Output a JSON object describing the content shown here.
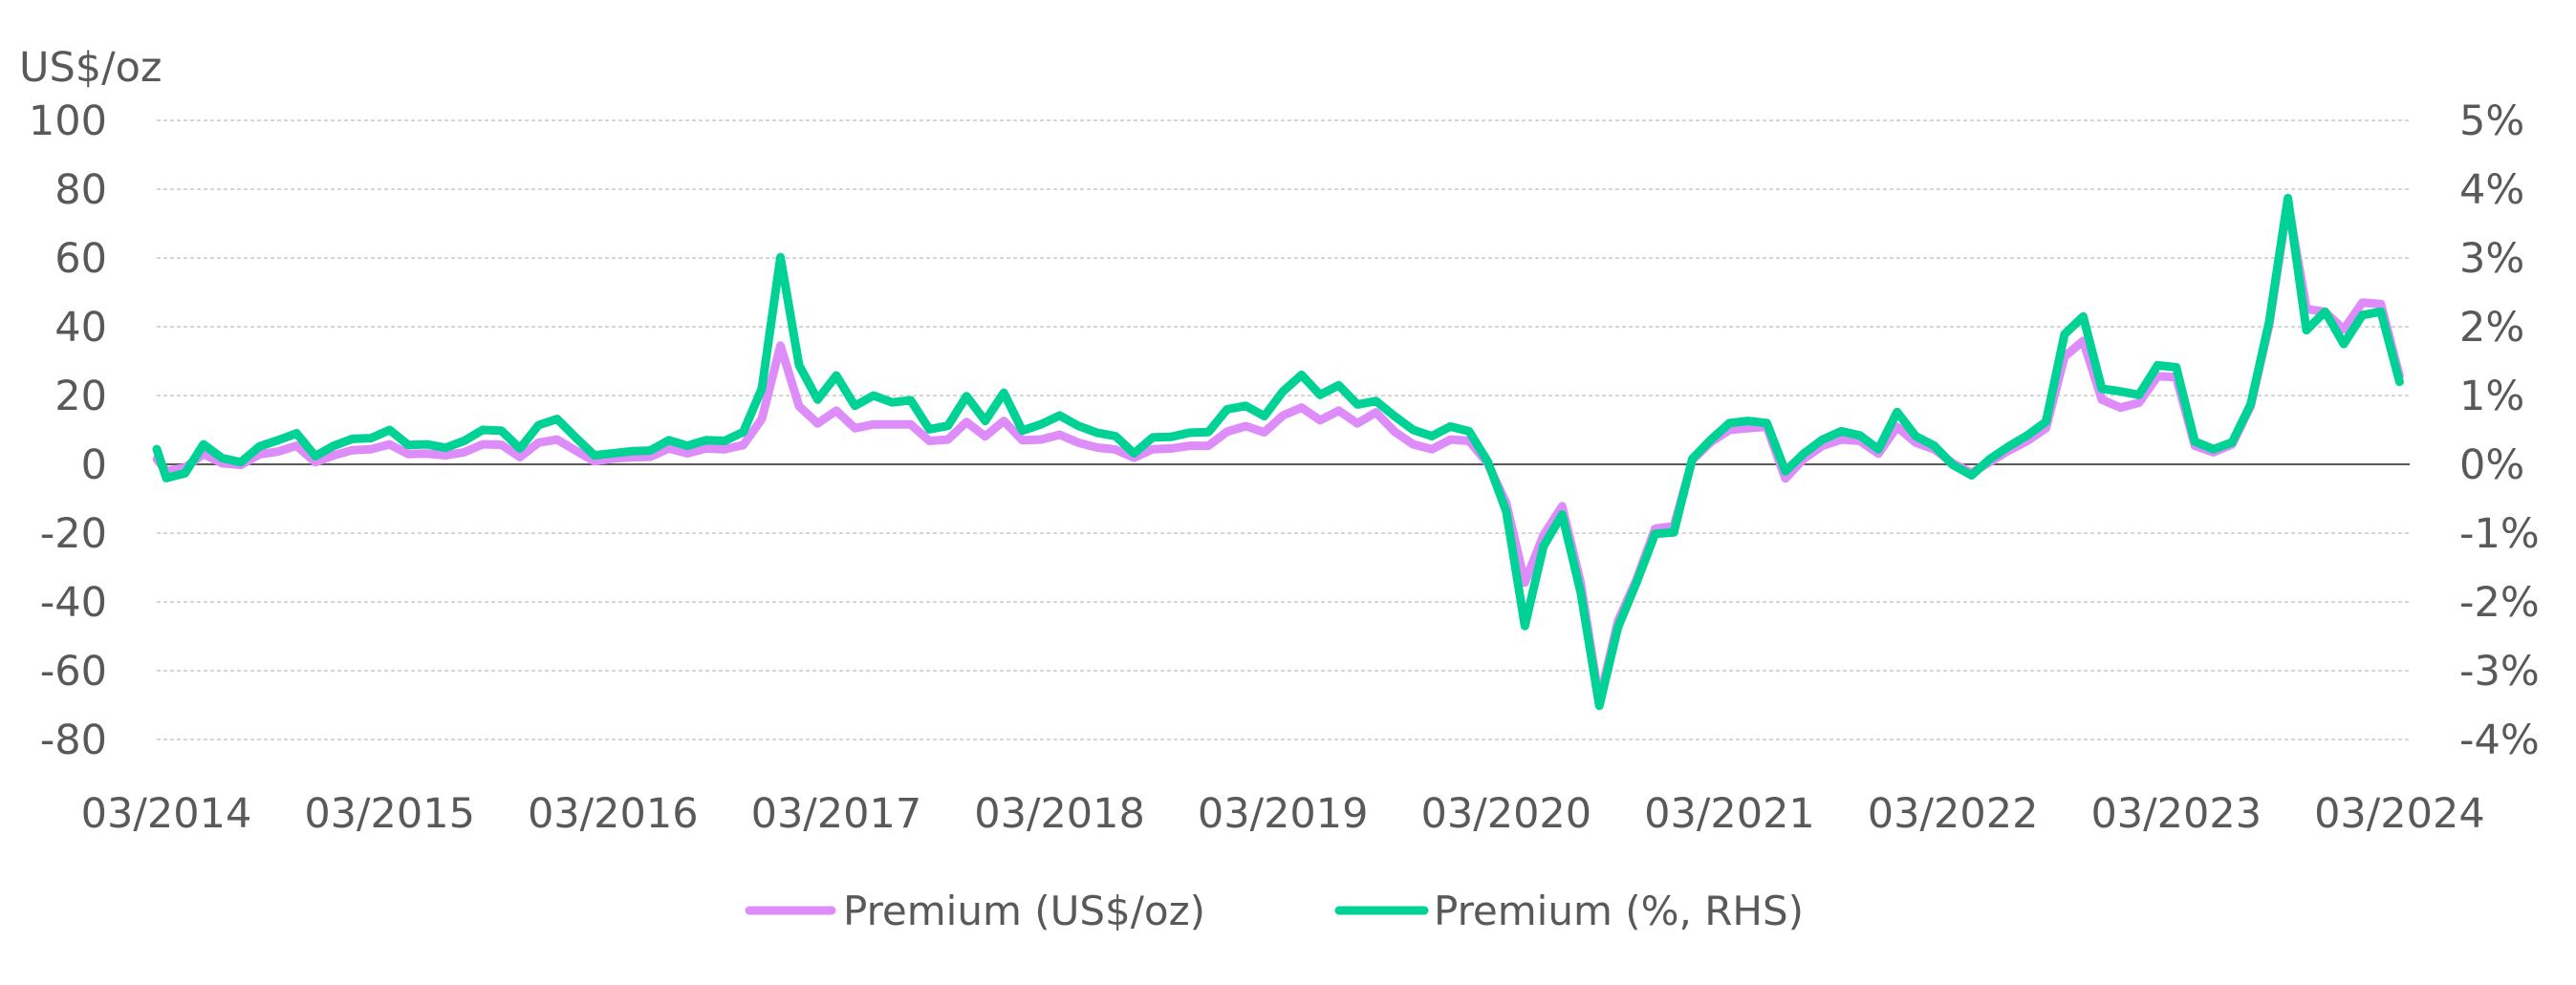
{
  "chart_data": {
    "type": "line",
    "title": "",
    "left_axis_unit": "US$/oz",
    "xlabel": "",
    "ylim_left": [
      -80,
      100
    ],
    "ylim_right": [
      -4,
      5
    ],
    "y_ticks_left": [
      "100",
      "80",
      "60",
      "40",
      "20",
      "0",
      "-20",
      "-40",
      "-60",
      "-80"
    ],
    "y_tick_values_left": [
      100,
      80,
      60,
      40,
      20,
      0,
      -20,
      -40,
      -60,
      -80
    ],
    "y_ticks_right": [
      "5%",
      "4%",
      "3%",
      "2%",
      "1%",
      "0%",
      "-1%",
      "-2%",
      "-3%",
      "-4%"
    ],
    "y_tick_values_right": [
      5,
      4,
      3,
      2,
      1,
      0,
      -1,
      -2,
      -3,
      -4
    ],
    "x_ticks": [
      "03/2014",
      "03/2015",
      "03/2016",
      "03/2017",
      "03/2018",
      "03/2019",
      "03/2020",
      "03/2021",
      "03/2022",
      "03/2023",
      "03/2024"
    ],
    "grid": "horizontal dashed",
    "legend_position": "bottom",
    "x": [
      "02/2014",
      "03/2014",
      "04/2014",
      "05/2014",
      "06/2014",
      "07/2014",
      "08/2014",
      "09/2014",
      "10/2014",
      "11/2014",
      "12/2014",
      "01/2015",
      "02/2015",
      "03/2015",
      "04/2015",
      "05/2015",
      "06/2015",
      "07/2015",
      "08/2015",
      "09/2015",
      "10/2015",
      "11/2015",
      "12/2015",
      "01/2016",
      "02/2016",
      "03/2016",
      "04/2016",
      "05/2016",
      "06/2016",
      "07/2016",
      "08/2016",
      "09/2016",
      "10/2016",
      "11/2016",
      "12/2016",
      "01/2017",
      "02/2017",
      "03/2017",
      "04/2017",
      "05/2017",
      "06/2017",
      "07/2017",
      "08/2017",
      "09/2017",
      "10/2017",
      "11/2017",
      "12/2017",
      "01/2018",
      "02/2018",
      "03/2018",
      "04/2018",
      "05/2018",
      "06/2018",
      "07/2018",
      "08/2018",
      "09/2018",
      "10/2018",
      "11/2018",
      "12/2018",
      "01/2019",
      "02/2019",
      "03/2019",
      "04/2019",
      "05/2019",
      "06/2019",
      "07/2019",
      "08/2019",
      "09/2019",
      "10/2019",
      "11/2019",
      "12/2019",
      "01/2020",
      "02/2020",
      "03/2020",
      "04/2020",
      "05/2020",
      "06/2020",
      "07/2020",
      "08/2020",
      "09/2020",
      "10/2020",
      "11/2020",
      "12/2020",
      "01/2021",
      "02/2021",
      "03/2021",
      "04/2021",
      "05/2021",
      "06/2021",
      "07/2021",
      "08/2021",
      "09/2021",
      "10/2021",
      "11/2021",
      "12/2021",
      "01/2022",
      "02/2022",
      "03/2022",
      "04/2022",
      "05/2022",
      "06/2022",
      "07/2022",
      "08/2022",
      "09/2022",
      "10/2022",
      "11/2022",
      "12/2022",
      "01/2023",
      "02/2023",
      "03/2023",
      "04/2023",
      "05/2023",
      "06/2023",
      "07/2023",
      "08/2023",
      "09/2023",
      "10/2023",
      "11/2023",
      "12/2023",
      "01/2024",
      "02/2024",
      "03/2024"
    ],
    "series": [
      {
        "name": "Premium (US$/oz)",
        "axis": "left",
        "color": "#DD8CFA",
        "values": [
          1.5,
          -2,
          -1,
          3,
          0.3,
          -0.2,
          2.9,
          3.7,
          5.4,
          0.6,
          2.6,
          4.1,
          4.4,
          5.8,
          3,
          3.1,
          2.6,
          3.5,
          5.8,
          5.7,
          2.1,
          6.3,
          7.2,
          4,
          0.9,
          1.7,
          2,
          2.2,
          4.6,
          3.2,
          4.6,
          4.4,
          5.6,
          13.2,
          34.5,
          16.9,
          11.9,
          15.6,
          10.5,
          11.6,
          11.6,
          11.6,
          6.8,
          7.2,
          12.3,
          8.1,
          12.6,
          7.0,
          7.2,
          8.6,
          6.3,
          4.9,
          4.3,
          1.9,
          4.4,
          4.6,
          5.4,
          5.4,
          9.5,
          11.1,
          9.3,
          14.2,
          16.5,
          12.8,
          15.6,
          11.9,
          15.1,
          9.5,
          5.8,
          4.4,
          7.2,
          6.8,
          0.3,
          -11.3,
          -34.4,
          -20.6,
          -12.2,
          -34.4,
          -68.7,
          -45.6,
          -33.5,
          -18.7,
          -18,
          1.2,
          6.5,
          10,
          10.5,
          10.9,
          -4.1,
          1.7,
          5.4,
          7.2,
          6.8,
          3.1,
          10.9,
          6.3,
          4.4,
          0.3,
          -2.5,
          0.7,
          4,
          6.8,
          10.5,
          31.3,
          35.9,
          18.8,
          16.5,
          17.9,
          25.6,
          25.3,
          5.4,
          3.5,
          5.8,
          16.9,
          40.6,
          76.2,
          45.2,
          44.3,
          39.2,
          47,
          46.6,
          25.7
        ]
      },
      {
        "name": "Premium (%, RHS)",
        "axis": "right",
        "color": "#00D296",
        "values": [
          0.22,
          -0.2,
          -0.13,
          0.29,
          0.09,
          0.03,
          0.26,
          0.35,
          0.45,
          0.12,
          0.27,
          0.37,
          0.38,
          0.5,
          0.28,
          0.29,
          0.24,
          0.34,
          0.5,
          0.49,
          0.23,
          0.57,
          0.66,
          0.39,
          0.13,
          0.16,
          0.19,
          0.2,
          0.35,
          0.27,
          0.35,
          0.34,
          0.47,
          1.1,
          3.01,
          1.44,
          0.94,
          1.29,
          0.85,
          1.0,
          0.9,
          0.93,
          0.51,
          0.56,
          0.99,
          0.63,
          1.04,
          0.49,
          0.58,
          0.71,
          0.56,
          0.46,
          0.41,
          0.16,
          0.39,
          0.4,
          0.46,
          0.47,
          0.8,
          0.85,
          0.7,
          1.06,
          1.3,
          1.01,
          1.15,
          0.87,
          0.92,
          0.7,
          0.5,
          0.41,
          0.55,
          0.48,
          0.04,
          -0.68,
          -2.35,
          -1.19,
          -0.73,
          -1.86,
          -3.51,
          -2.37,
          -1.72,
          -1.01,
          -0.99,
          0.08,
          0.36,
          0.6,
          0.63,
          0.6,
          -0.1,
          0.16,
          0.36,
          0.48,
          0.42,
          0.22,
          0.76,
          0.41,
          0.27,
          -0.01,
          -0.16,
          0.08,
          0.26,
          0.42,
          0.62,
          1.89,
          2.15,
          1.1,
          1.06,
          1.01,
          1.44,
          1.41,
          0.33,
          0.22,
          0.32,
          0.87,
          2.08,
          3.87,
          1.95,
          2.22,
          1.75,
          2.17,
          2.22,
          1.2
        ]
      }
    ]
  }
}
